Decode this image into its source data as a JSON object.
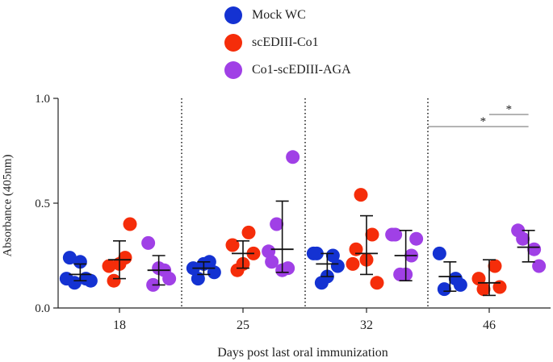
{
  "chart_data": {
    "type": "scatter",
    "title": "",
    "xlabel": "Days post last oral immunization",
    "ylabel": "Absorbance (405nm)",
    "ylim": [
      0.0,
      1.0
    ],
    "yticks": [
      {
        "value": 0.0,
        "label": "0.0"
      },
      {
        "value": 0.5,
        "label": "0.5"
      },
      {
        "value": 1.0,
        "label": "1.0"
      }
    ],
    "categories": [
      "18",
      "25",
      "32",
      "46"
    ],
    "series": [
      {
        "name": "Mock WC",
        "color": "#1432d2",
        "points": [
          [
            0.24,
            0.13,
            0.12,
            0.14,
            0.22,
            0.14
          ],
          [
            0.19,
            0.17,
            0.14,
            0.22,
            0.21
          ],
          [
            0.26,
            0.2,
            0.12,
            0.25,
            0.15,
            0.26
          ],
          [
            0.26,
            0.11,
            0.09,
            0.14
          ]
        ],
        "mean": [
          0.16,
          0.19,
          0.21,
          0.15
        ],
        "sd_low": [
          0.13,
          0.16,
          0.15,
          0.08
        ],
        "sd_high": [
          0.21,
          0.22,
          0.26,
          0.22
        ]
      },
      {
        "name": "scEDIII-Co1",
        "color": "#f52d0a",
        "points": [
          [
            0.2,
            0.4,
            0.13,
            0.24,
            0.21
          ],
          [
            0.3,
            0.26,
            0.18,
            0.36,
            0.21
          ],
          [
            0.28,
            0.12,
            0.54,
            0.35,
            0.23,
            0.21
          ],
          [
            0.14,
            0.1,
            0.09,
            0.2
          ]
        ],
        "mean": [
          0.23,
          0.26,
          0.26,
          0.12
        ],
        "sd_low": [
          0.14,
          0.19,
          0.16,
          0.06
        ],
        "sd_high": [
          0.32,
          0.32,
          0.44,
          0.23
        ]
      },
      {
        "name": "Co1-scEDIII-AGA",
        "color": "#a040e6",
        "points": [
          [
            0.31,
            0.14,
            0.11,
            0.18,
            0.19
          ],
          [
            0.22,
            0.72,
            0.4,
            0.19,
            0.18,
            0.27
          ],
          [
            0.35,
            0.33,
            0.16,
            0.25,
            0.16,
            0.35
          ],
          [
            0.37,
            0.2,
            0.33,
            0.28
          ]
        ],
        "mean": [
          0.18,
          0.28,
          0.25,
          0.29
        ],
        "sd_low": [
          0.11,
          0.17,
          0.13,
          0.22
        ],
        "sd_high": [
          0.25,
          0.51,
          0.37,
          0.37
        ]
      }
    ],
    "significance": [
      {
        "label": "*",
        "from": "scEDIII-Co1",
        "to": "Co1-scEDIII-AGA",
        "category": "46"
      },
      {
        "label": "*",
        "from": "Mock WC",
        "to": "Co1-scEDIII-AGA",
        "category": "46"
      }
    ]
  }
}
